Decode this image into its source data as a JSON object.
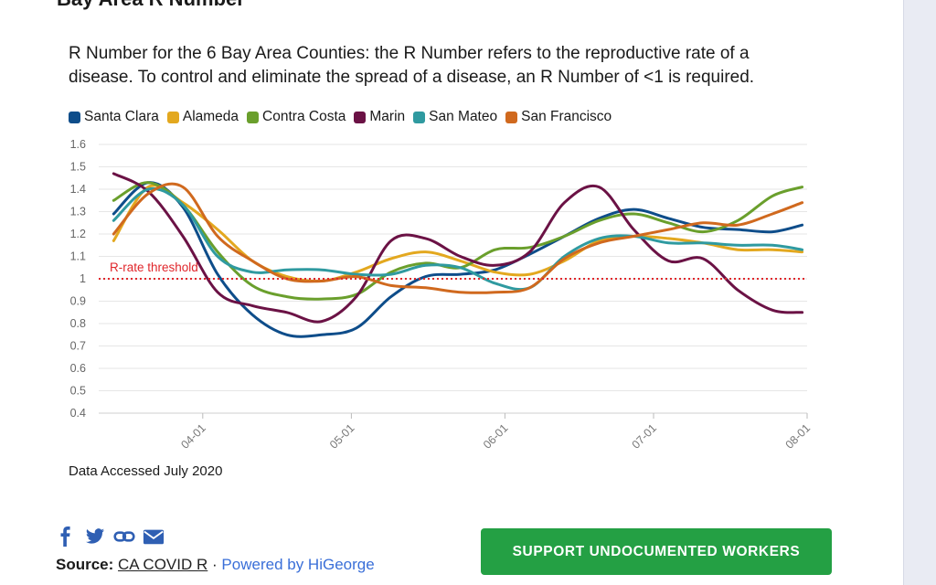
{
  "section_title": "Bay Area R Number",
  "subtitle": "R Number for the 6 Bay Area Counties: the R Number refers to the reproductive rate of a disease. To control and eliminate the spread of a disease, an R Number of <1 is required.",
  "caption": "Data Accessed July 2020",
  "threshold_label": "R-rate threshold",
  "source": {
    "label": "Source:",
    "name": "CA COVID R",
    "separator": "·",
    "powered_by": "Powered by HiGeorge"
  },
  "cta_label": "SUPPORT UNDOCUMENTED WORKERS",
  "share_icons": [
    "facebook-icon",
    "twitter-icon",
    "link-icon",
    "email-icon"
  ],
  "colors": {
    "cta": "#24a044",
    "threshold": "#e0262b",
    "grid": "#e6e6e6"
  },
  "chart_data": {
    "type": "line",
    "title": "",
    "xlabel": "",
    "ylabel": "",
    "ylim": [
      0.4,
      1.6
    ],
    "yticks": [
      0.4,
      0.5,
      0.6,
      0.7,
      0.8,
      0.9,
      1,
      1.1,
      1.2,
      1.3,
      1.4,
      1.5,
      1.6
    ],
    "ytick_labels": [
      "0.4",
      "0.5",
      "0.6",
      "0.7",
      "0.8",
      "0.9",
      "1",
      "1.1",
      "1.2",
      "1.3",
      "1.4",
      "1.5",
      "1.6"
    ],
    "xlim": [
      "2020-03-11",
      "2020-08-01"
    ],
    "xticks": [
      "2020-04-01",
      "2020-05-01",
      "2020-06-01",
      "2020-07-01",
      "2020-08-01"
    ],
    "xtick_labels": [
      "04-01",
      "05-01",
      "06-01",
      "07-01",
      "08-01"
    ],
    "threshold": 1,
    "x": [
      "2020-03-14",
      "2020-03-21",
      "2020-03-28",
      "2020-04-04",
      "2020-04-11",
      "2020-04-18",
      "2020-04-25",
      "2020-05-02",
      "2020-05-09",
      "2020-05-16",
      "2020-05-23",
      "2020-05-30",
      "2020-06-06",
      "2020-06-13",
      "2020-06-20",
      "2020-06-27",
      "2020-07-04",
      "2020-07-11",
      "2020-07-18",
      "2020-07-25",
      "2020-07-31"
    ],
    "series": [
      {
        "name": "Santa Clara",
        "color": "#0e4d8a",
        "values": [
          1.29,
          1.43,
          1.32,
          1.02,
          0.84,
          0.75,
          0.75,
          0.78,
          0.92,
          1.01,
          1.02,
          1.04,
          1.11,
          1.19,
          1.27,
          1.31,
          1.27,
          1.23,
          1.22,
          1.21,
          1.24
        ]
      },
      {
        "name": "Alameda",
        "color": "#e3a81f",
        "values": [
          1.17,
          1.41,
          1.34,
          1.22,
          1.08,
          1.01,
          0.99,
          1.03,
          1.09,
          1.12,
          1.08,
          1.03,
          1.02,
          1.08,
          1.17,
          1.19,
          1.18,
          1.16,
          1.13,
          1.13,
          1.12
        ]
      },
      {
        "name": "Contra Costa",
        "color": "#6a9f2c",
        "values": [
          1.35,
          1.43,
          1.33,
          1.12,
          0.97,
          0.92,
          0.91,
          0.93,
          1.03,
          1.07,
          1.05,
          1.13,
          1.14,
          1.19,
          1.26,
          1.29,
          1.25,
          1.21,
          1.26,
          1.37,
          1.41
        ]
      },
      {
        "name": "Marin",
        "color": "#6b1245",
        "values": [
          1.47,
          1.39,
          1.19,
          0.94,
          0.88,
          0.85,
          0.81,
          0.92,
          1.17,
          1.18,
          1.1,
          1.06,
          1.12,
          1.34,
          1.41,
          1.22,
          1.08,
          1.09,
          0.95,
          0.86,
          0.85
        ]
      },
      {
        "name": "San Mateo",
        "color": "#2f9aa0",
        "values": [
          1.26,
          1.4,
          1.33,
          1.1,
          1.03,
          1.04,
          1.04,
          1.02,
          1.02,
          1.06,
          1.05,
          0.98,
          0.96,
          1.1,
          1.18,
          1.19,
          1.16,
          1.16,
          1.15,
          1.15,
          1.13
        ]
      },
      {
        "name": "San Francisco",
        "color": "#d0691e",
        "values": [
          1.2,
          1.38,
          1.41,
          1.19,
          1.08,
          1.0,
          0.99,
          1.01,
          0.97,
          0.96,
          0.94,
          0.94,
          0.96,
          1.09,
          1.16,
          1.19,
          1.22,
          1.25,
          1.24,
          1.29,
          1.34
        ]
      }
    ]
  }
}
